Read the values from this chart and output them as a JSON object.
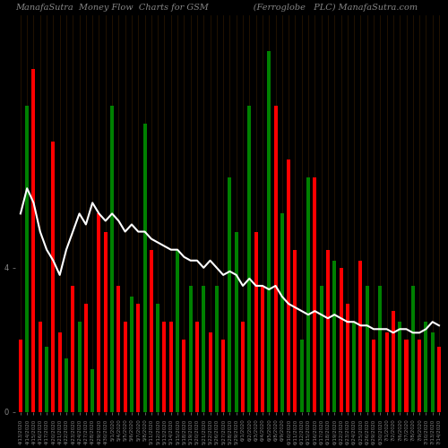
{
  "title": "ManafaSutra  Money Flow  Charts for GSM                (Ferroglobe   PLC) ManafaSutra.com",
  "bg_color": "#000000",
  "bar_colors_pattern": [
    "red",
    "green",
    "red",
    "red",
    "green",
    "red",
    "red",
    "green",
    "red",
    "green",
    "red",
    "green",
    "red",
    "red",
    "green",
    "red",
    "red",
    "green",
    "red",
    "green",
    "red",
    "green",
    "red",
    "red",
    "green",
    "red",
    "green",
    "red",
    "green",
    "red",
    "green",
    "red",
    "green",
    "green",
    "red",
    "green",
    "red",
    "red",
    "green",
    "red",
    "green",
    "red",
    "red",
    "green",
    "green",
    "red",
    "green",
    "red",
    "green",
    "red",
    "red",
    "green",
    "red",
    "green",
    "red",
    "green",
    "red",
    "red",
    "green",
    "red",
    "green",
    "red",
    "green",
    "green",
    "red"
  ],
  "bar_heights": [
    2.0,
    8.5,
    9.5,
    2.5,
    1.8,
    7.5,
    2.2,
    1.5,
    3.5,
    2.5,
    3.0,
    1.2,
    5.5,
    5.0,
    8.5,
    3.5,
    2.5,
    3.2,
    3.0,
    8.0,
    4.5,
    3.0,
    2.5,
    2.5,
    4.5,
    2.0,
    3.5,
    2.5,
    3.5,
    2.2,
    3.5,
    2.0,
    6.5,
    5.0,
    2.5,
    8.5,
    5.0,
    3.5,
    10.0,
    8.5,
    5.5,
    7.0,
    4.5,
    2.0,
    6.5,
    6.5,
    3.5,
    4.5,
    4.2,
    4.0,
    3.0,
    2.5,
    4.2,
    3.5,
    2.0,
    3.5,
    2.2,
    2.8,
    2.5,
    2.0,
    3.5,
    2.0,
    2.5,
    2.2,
    1.8
  ],
  "line_values": [
    5.5,
    6.2,
    5.8,
    5.0,
    4.5,
    4.2,
    3.8,
    4.5,
    5.0,
    5.5,
    5.2,
    5.8,
    5.5,
    5.3,
    5.5,
    5.3,
    5.0,
    5.2,
    5.0,
    5.0,
    4.8,
    4.7,
    4.6,
    4.5,
    4.5,
    4.3,
    4.2,
    4.2,
    4.0,
    4.2,
    4.0,
    3.8,
    3.9,
    3.8,
    3.5,
    3.7,
    3.5,
    3.5,
    3.4,
    3.5,
    3.2,
    3.0,
    2.9,
    2.8,
    2.7,
    2.8,
    2.7,
    2.6,
    2.7,
    2.6,
    2.5,
    2.5,
    2.4,
    2.4,
    2.3,
    2.3,
    2.3,
    2.2,
    2.3,
    2.3,
    2.2,
    2.2,
    2.3,
    2.5,
    2.4
  ],
  "xlabel_fontsize": 4.0,
  "title_fontsize": 7,
  "title_color": "#888888",
  "line_color": "#ffffff",
  "line_width": 1.5,
  "xtick_labels": [
    "4/13/2020",
    "4/14/2020",
    "4/15/2020",
    "4/16/2020",
    "4/17/2020",
    "4/20/2020",
    "4/21/2020",
    "4/22/2020",
    "4/23/2020",
    "4/24/2020",
    "4/27/2020",
    "4/28/2020",
    "4/29/2020",
    "4/30/2020",
    "5/1/2020",
    "5/4/2020",
    "5/5/2020",
    "5/6/2020",
    "5/7/2020",
    "5/8/2020",
    "5/11/2020",
    "5/12/2020",
    "5/13/2020",
    "5/14/2020",
    "5/15/2020",
    "5/18/2020",
    "5/19/2020",
    "5/20/2020",
    "5/21/2020",
    "5/22/2020",
    "5/26/2020",
    "5/27/2020",
    "5/28/2020",
    "5/29/2020",
    "6/1/2020",
    "6/2/2020",
    "6/3/2020",
    "6/4/2020",
    "6/5/2020",
    "6/8/2020",
    "6/9/2020",
    "6/10/2020",
    "6/11/2020",
    "6/12/2020",
    "6/15/2020",
    "6/16/2020",
    "6/17/2020",
    "6/18/2020",
    "6/19/2020",
    "6/22/2020",
    "6/23/2020",
    "6/24/2020",
    "6/25/2020",
    "6/26/2020",
    "6/29/2020",
    "6/30/2020",
    "7/1/2020",
    "7/2/2020",
    "7/6/2020",
    "7/7/2020",
    "7/8/2020",
    "7/9/2020",
    "7/10/2020",
    "7/13/2020",
    "7/14/2020"
  ],
  "ytick_labels_vals": [
    [
      "0",
      0
    ],
    [
      "4",
      4
    ]
  ],
  "ylim": [
    0,
    11.0
  ],
  "figsize": [
    5.0,
    5.0
  ],
  "dpi": 100
}
